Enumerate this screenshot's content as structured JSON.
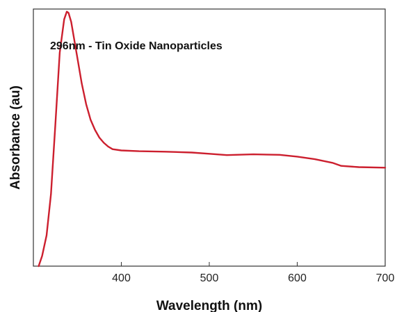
{
  "chart_data": {
    "type": "line",
    "title": "",
    "annotation": "296nm - Tin Oxide Nanoparticles",
    "xlabel": "Wavelength (nm)",
    "ylabel": "Absorbance (au)",
    "xlim": [
      300,
      700
    ],
    "ylim": [
      0,
      1
    ],
    "xticks": [
      400,
      500,
      600,
      700
    ],
    "y_tick_labels": "none",
    "grid": false,
    "legend": "none",
    "series": [
      {
        "color": "#cc1f2e",
        "x": [
          306,
          310,
          315,
          320,
          325,
          330,
          335,
          338,
          340,
          343,
          346,
          350,
          355,
          360,
          365,
          370,
          375,
          380,
          385,
          390,
          400,
          420,
          450,
          480,
          500,
          520,
          550,
          580,
          600,
          620,
          640,
          650,
          670,
          700
        ],
        "y": [
          0.0,
          0.04,
          0.12,
          0.28,
          0.55,
          0.83,
          0.96,
          0.99,
          0.985,
          0.95,
          0.89,
          0.81,
          0.71,
          0.63,
          0.57,
          0.53,
          0.5,
          0.48,
          0.465,
          0.455,
          0.45,
          0.447,
          0.445,
          0.442,
          0.437,
          0.432,
          0.435,
          0.433,
          0.426,
          0.416,
          0.402,
          0.39,
          0.385,
          0.383
        ]
      }
    ]
  }
}
